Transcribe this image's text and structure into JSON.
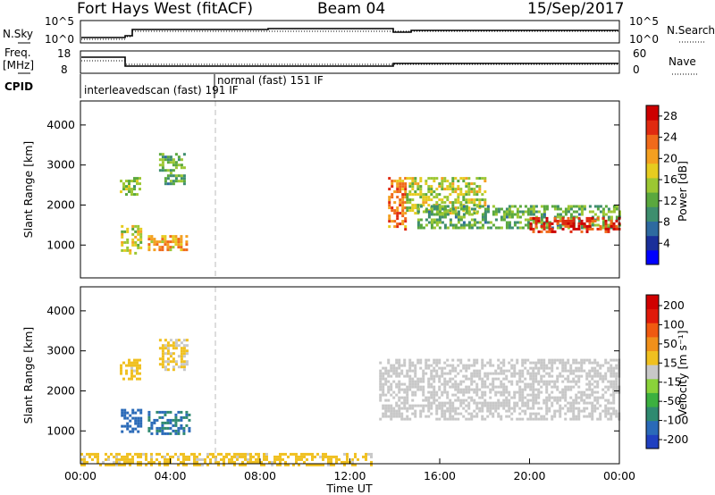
{
  "header": {
    "title": "Fort Hays West (fitACF)",
    "beam": "Beam 04",
    "date": "15/Sep/2017"
  },
  "params": {
    "nsky_label": "N.Sky",
    "nsearch_label": "N.Search",
    "freq_label_1": "Freq.",
    "freq_label_2": "[MHz]",
    "nave_label": "Nave",
    "cpid_label": "CPID",
    "noise_ticks": [
      "10^5",
      "10^0"
    ],
    "freq_ticks": [
      "18",
      "8"
    ],
    "nave_ticks": [
      "60",
      "0"
    ],
    "cpid_modes": [
      "interleavedscan (fast) 191 IF",
      "normal (fast) 151 IF"
    ]
  },
  "chart_data": [
    {
      "type": "heatmap",
      "name": "power",
      "ylabel": "Slant Range [km]",
      "xlabel": "",
      "xlim": [
        0,
        24
      ],
      "ylim": [
        180,
        4600
      ],
      "yticks": [
        1000,
        2000,
        3000,
        4000
      ],
      "colorbar": {
        "label": "Power [dB]",
        "ticks": [
          "4",
          "8",
          "12",
          "16",
          "20",
          "24",
          "28"
        ],
        "range": [
          0,
          30
        ],
        "colors": [
          "#0000ff",
          "#1a2f9a",
          "#2e6aa0",
          "#3e8e6e",
          "#5aa83e",
          "#9cc733",
          "#e6cc20",
          "#f4a020",
          "#f06a1a",
          "#e02a10",
          "#cc0000"
        ]
      },
      "regions": [
        {
          "t0": 1.75,
          "t1": 2.7,
          "r0": 2250,
          "r1": 2700,
          "v": 14
        },
        {
          "t0": 3.5,
          "t1": 4.6,
          "r0": 2500,
          "r1": 3300,
          "v": 12
        },
        {
          "t0": 1.8,
          "t1": 2.7,
          "r0": 800,
          "r1": 1500,
          "v": 17
        },
        {
          "t0": 3.0,
          "t1": 4.7,
          "r0": 850,
          "r1": 1250,
          "v": 20
        },
        {
          "t0": 13.7,
          "t1": 14.5,
          "r0": 1400,
          "r1": 2700,
          "v": 22
        },
        {
          "t0": 14.5,
          "t1": 18.0,
          "r0": 1800,
          "r1": 2700,
          "v": 16
        },
        {
          "t0": 15.0,
          "t1": 24.0,
          "r0": 1400,
          "r1": 2000,
          "v": 12
        },
        {
          "t0": 20.0,
          "t1": 24.0,
          "r0": 1300,
          "r1": 1700,
          "v": 26
        }
      ]
    },
    {
      "type": "heatmap",
      "name": "velocity",
      "ylabel": "Slant Range [km]",
      "xlabel": "Time UT",
      "xlim": [
        0,
        24
      ],
      "ylim": [
        180,
        4600
      ],
      "yticks": [
        1000,
        2000,
        3000,
        4000
      ],
      "xticks": [
        "00:00",
        "04:00",
        "08:00",
        "12:00",
        "16:00",
        "20:00",
        "00:00"
      ],
      "colorbar": {
        "label": "Velocity [m s⁻¹]",
        "ticks": [
          "200",
          "100",
          "50",
          "15",
          "-15",
          "-50",
          "-100",
          "-200"
        ],
        "range": [
          -250,
          250
        ],
        "colors": [
          "#2040c0",
          "#2a6ab8",
          "#2f8a70",
          "#3cb040",
          "#8ad23a",
          "#c8c8c8",
          "#f0c020",
          "#f0901a",
          "#f05a10",
          "#e01a0a",
          "#d00000"
        ]
      },
      "regions": [
        {
          "t0": 1.75,
          "t1": 2.7,
          "r0": 2300,
          "r1": 2800,
          "v": 40
        },
        {
          "t0": 3.5,
          "t1": 4.8,
          "r0": 2550,
          "r1": 3300,
          "v": 30
        },
        {
          "t0": 1.8,
          "t1": 2.7,
          "r0": 950,
          "r1": 1550,
          "v": -180
        },
        {
          "t0": 3.0,
          "t1": 4.8,
          "r0": 950,
          "r1": 1500,
          "v": -160
        },
        {
          "t0": 13.3,
          "t1": 24.0,
          "r0": 1300,
          "r1": 2800,
          "v": 0
        },
        {
          "t0": 0.0,
          "t1": 13.0,
          "r0": 180,
          "r1": 450,
          "v": 40
        }
      ]
    }
  ]
}
